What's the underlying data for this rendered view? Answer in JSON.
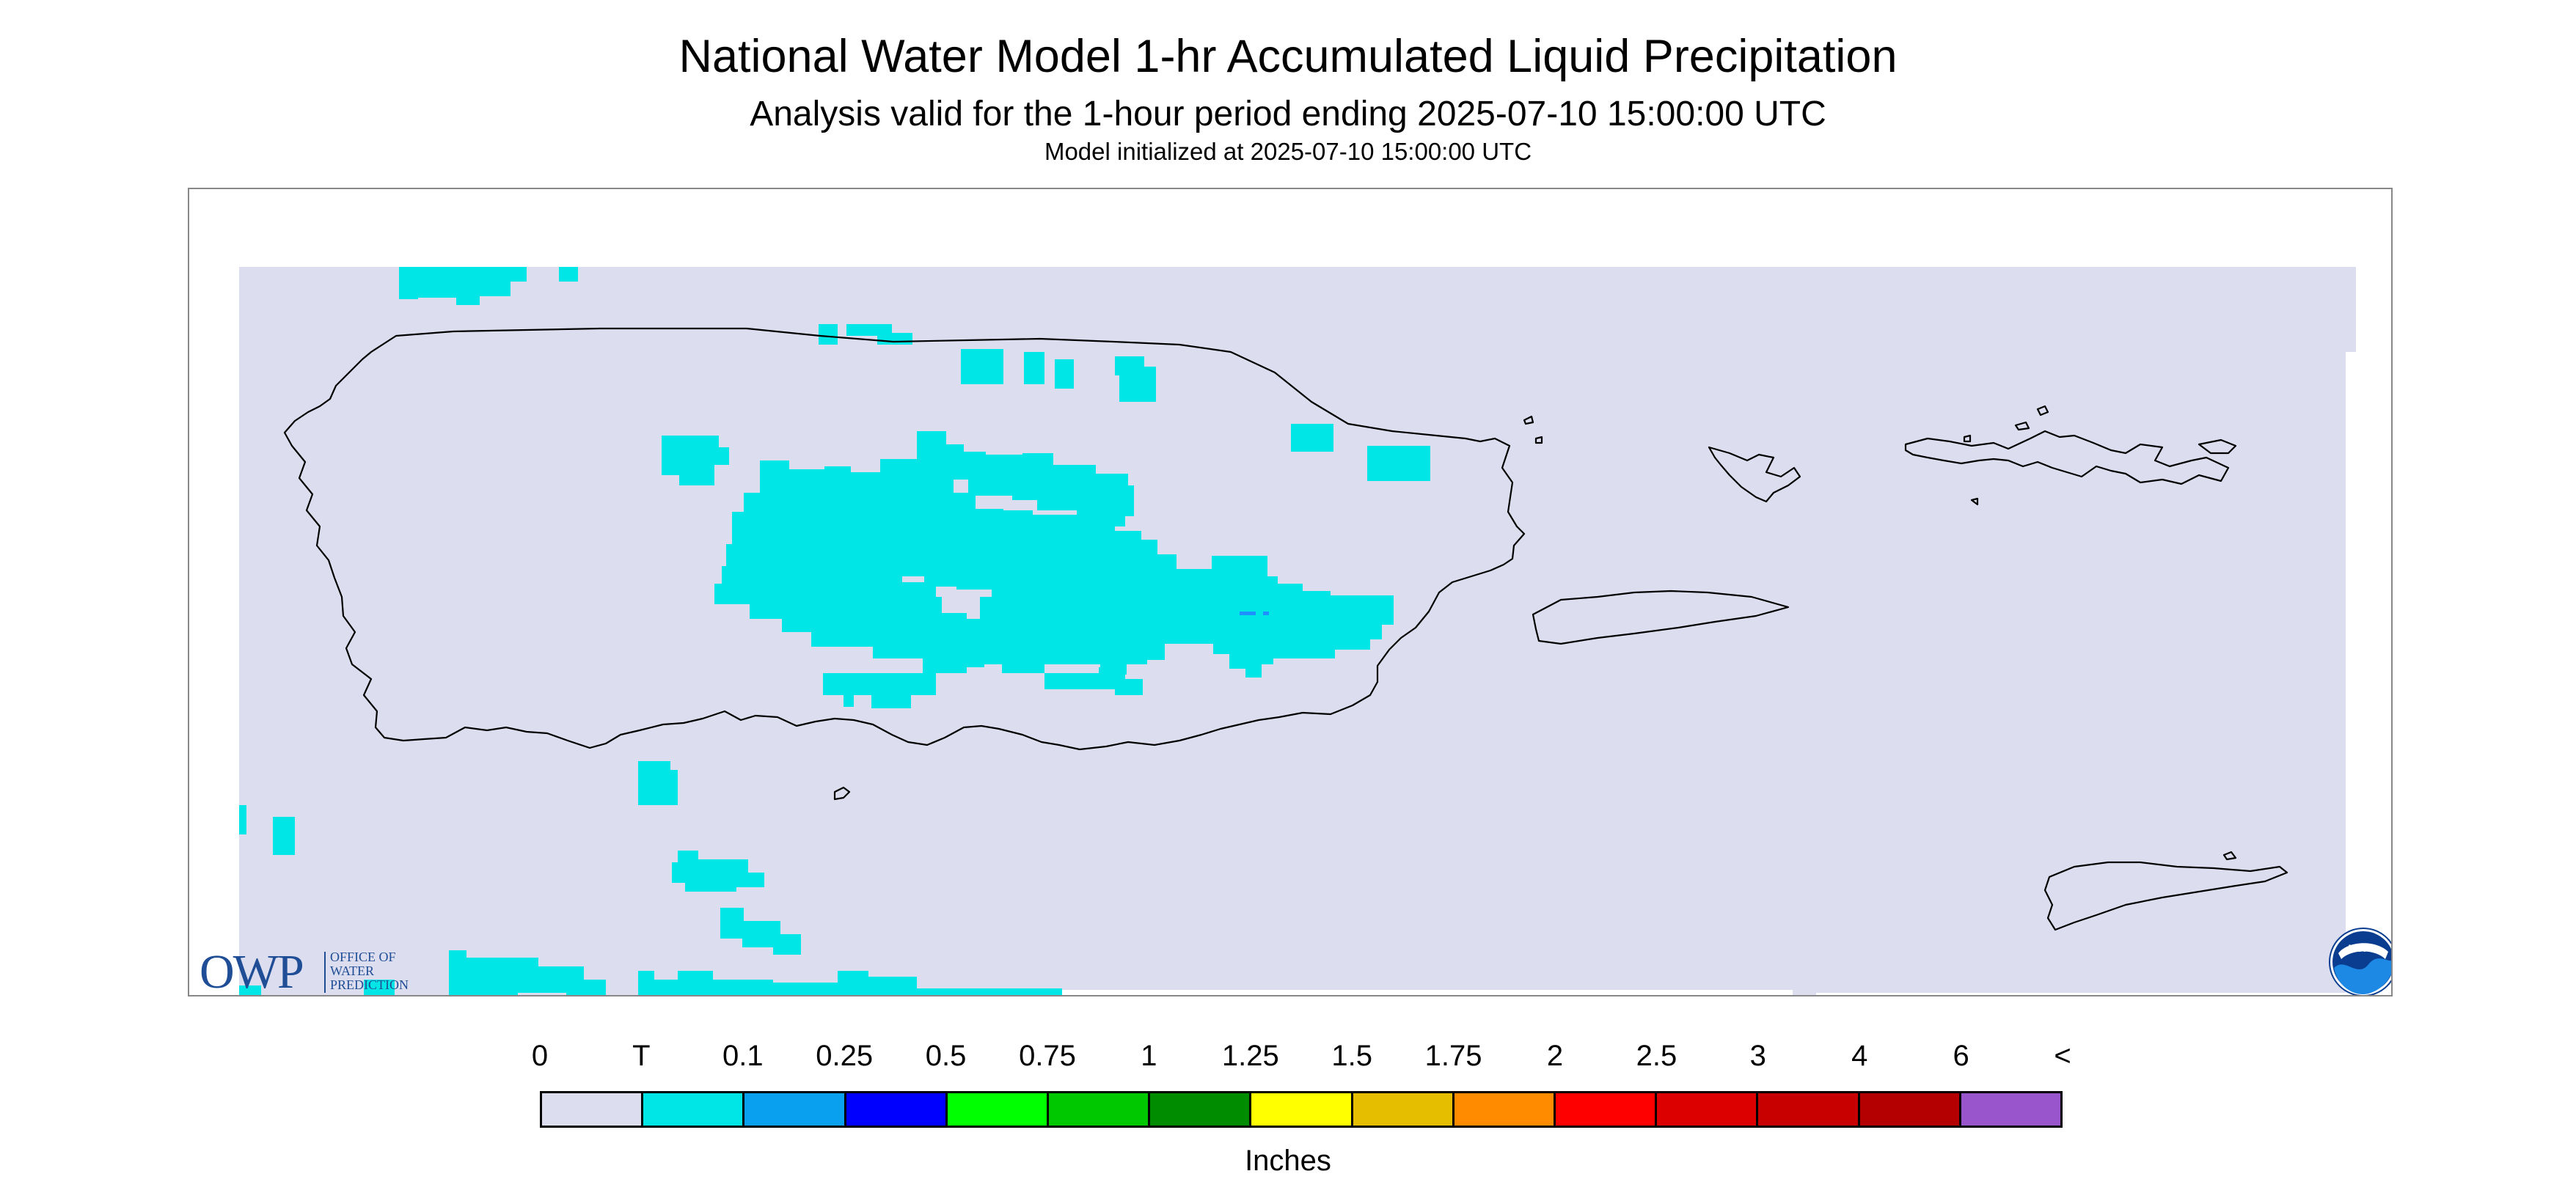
{
  "header": {
    "title": "National Water Model 1-hr Accumulated Liquid Precipitation",
    "subtitle": "Analysis valid for the 1-hour period ending 2025-07-10 15:00:00 UTC",
    "init": "Model initialized at 2025-07-10 15:00:00 UTC"
  },
  "map": {
    "background_color": "#dcddef",
    "trace_color": "#00e5e5",
    "light_rain_color": "#1e90ff",
    "regions": [
      "Puerto Rico",
      "Vieques",
      "Culebra",
      "U.S. Virgin Islands",
      "St. Croix"
    ]
  },
  "logos": {
    "owp_letters": "OWP",
    "owp_text": [
      "OFFICE OF",
      "WATER",
      "PREDICTION"
    ],
    "noaa_text": "NOAA"
  },
  "legend": {
    "items": [
      {
        "label": "0",
        "color": "#dcddef"
      },
      {
        "label": "T",
        "color": "#00e5e5"
      },
      {
        "label": "0.1",
        "color": "#0aa0f0"
      },
      {
        "label": "0.25",
        "color": "#0000ff"
      },
      {
        "label": "0.5",
        "color": "#00ff00"
      },
      {
        "label": "0.75",
        "color": "#00c800"
      },
      {
        "label": "1",
        "color": "#008c00"
      },
      {
        "label": "1.25",
        "color": "#ffff00"
      },
      {
        "label": "1.5",
        "color": "#e6be00"
      },
      {
        "label": "1.75",
        "color": "#ff8c00"
      },
      {
        "label": "2",
        "color": "#ff0000"
      },
      {
        "label": "2.5",
        "color": "#dc0000"
      },
      {
        "label": "3",
        "color": "#c80000"
      },
      {
        "label": "4",
        "color": "#b40000"
      },
      {
        "label": "6",
        "color": "#ff00ff"
      },
      {
        "label": "<",
        "color": "#9955cc"
      }
    ],
    "units": "Inches"
  }
}
